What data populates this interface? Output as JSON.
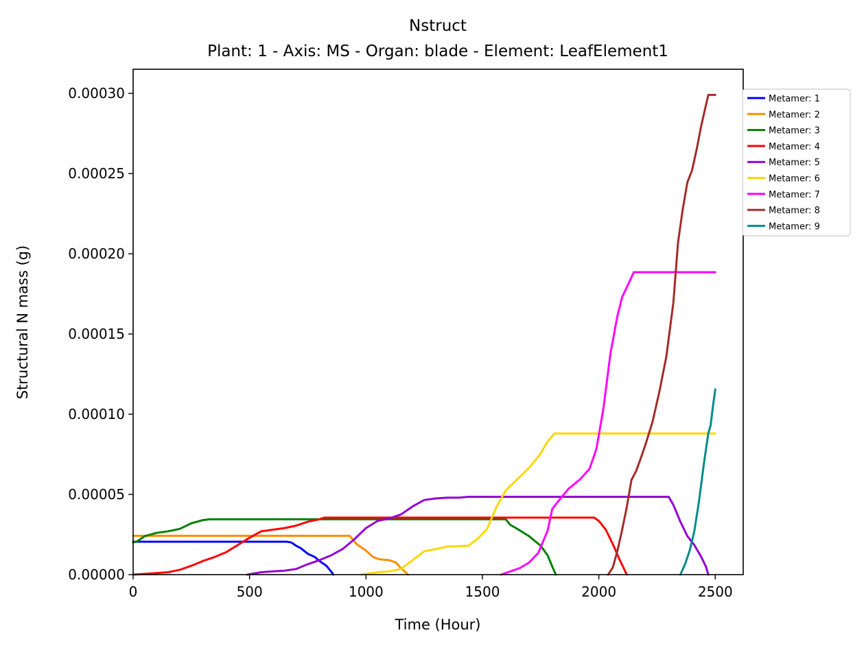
{
  "chart_data": {
    "type": "line",
    "title": "Nstruct",
    "subtitle": "Plant: 1 - Axis: MS - Organ: blade - Element: LeafElement1",
    "xlabel": "Time (Hour)",
    "ylabel": "Structural N mass (g)",
    "xlim": [
      0,
      2620
    ],
    "ylim": [
      0,
      0.000315
    ],
    "xticks": [
      0,
      500,
      1000,
      1500,
      2000,
      2500
    ],
    "xtick_labels": [
      "0",
      "500",
      "1000",
      "1500",
      "2000",
      "2500"
    ],
    "yticks": [
      0,
      5e-05,
      0.0001,
      0.00015,
      0.0002,
      0.00025,
      0.0003
    ],
    "ytick_labels": [
      "0.00000",
      "0.00005",
      "0.00010",
      "0.00015",
      "0.00020",
      "0.00025",
      "0.00030"
    ],
    "grid": false,
    "legend_position": "outside-top-right",
    "series": [
      {
        "name": "Metamer: 1",
        "color": "#0000ff",
        "x": [
          0,
          660,
          680,
          700,
          720,
          750,
          780,
          800,
          830,
          850,
          860
        ],
        "y": [
          2.05e-05,
          2.05e-05,
          2e-05,
          1.8e-05,
          1.65e-05,
          1.3e-05,
          1.1e-05,
          8.5e-06,
          5.5e-06,
          2e-06,
          0
        ]
      },
      {
        "name": "Metamer: 2",
        "color": "#ff8c00",
        "x": [
          0,
          930,
          960,
          1000,
          1030,
          1060,
          1100,
          1130,
          1150,
          1170,
          1180
        ],
        "y": [
          2.42e-05,
          2.42e-05,
          1.9e-05,
          1.5e-05,
          1.1e-05,
          9.5e-06,
          9e-06,
          7.5e-06,
          4e-06,
          1.5e-06,
          0
        ]
      },
      {
        "name": "Metamer: 3",
        "color": "#008000",
        "x": [
          0,
          20,
          50,
          100,
          150,
          200,
          250,
          300,
          330,
          1600,
          1620,
          1650,
          1700,
          1750,
          1780,
          1800,
          1815
        ],
        "y": [
          2e-05,
          2.1e-05,
          2.4e-05,
          2.6e-05,
          2.7e-05,
          2.85e-05,
          3.2e-05,
          3.4e-05,
          3.45e-05,
          3.45e-05,
          3.1e-05,
          2.85e-05,
          2.4e-05,
          1.8e-05,
          1.2e-05,
          5e-06,
          0
        ]
      },
      {
        "name": "Metamer: 4",
        "color": "#ff0000",
        "x": [
          0,
          100,
          150,
          200,
          250,
          300,
          350,
          400,
          450,
          500,
          550,
          600,
          650,
          700,
          750,
          800,
          820,
          1980,
          2000,
          2030,
          2060,
          2090,
          2120
        ],
        "y": [
          0,
          1e-06,
          1.5e-06,
          3e-06,
          5.5e-06,
          8.5e-06,
          1.1e-05,
          1.4e-05,
          1.85e-05,
          2.3e-05,
          2.7e-05,
          2.8e-05,
          2.9e-05,
          3.05e-05,
          3.3e-05,
          3.45e-05,
          3.55e-05,
          3.55e-05,
          3.35e-05,
          2.8e-05,
          1.9e-05,
          9e-06,
          0
        ]
      },
      {
        "name": "Metamer: 5",
        "color": "#9400d3",
        "x": [
          490,
          550,
          600,
          650,
          700,
          750,
          800,
          850,
          900,
          950,
          1000,
          1050,
          1100,
          1150,
          1200,
          1250,
          1300,
          1350,
          1400,
          1440,
          2300,
          2320,
          2350,
          2380,
          2410,
          2440,
          2460,
          2470
        ],
        "y": [
          0,
          1.5e-06,
          2e-06,
          2.5e-06,
          3.5e-06,
          6.5e-06,
          9e-06,
          1.2e-05,
          1.6e-05,
          2.2e-05,
          2.9e-05,
          3.35e-05,
          3.5e-05,
          3.75e-05,
          4.25e-05,
          4.65e-05,
          4.75e-05,
          4.8e-05,
          4.8e-05,
          4.85e-05,
          4.85e-05,
          4.35e-05,
          3.3e-05,
          2.4e-05,
          1.85e-05,
          1.1e-05,
          5e-06,
          0
        ]
      },
      {
        "name": "Metamer: 6",
        "color": "#ffd700",
        "x": [
          980,
          1050,
          1100,
          1150,
          1200,
          1250,
          1300,
          1350,
          1400,
          1440,
          1480,
          1520,
          1560,
          1600,
          1650,
          1700,
          1750,
          1780,
          1810,
          2500
        ],
        "y": [
          0,
          1.5e-06,
          2e-06,
          3.5e-06,
          9e-06,
          1.45e-05,
          1.6e-05,
          1.75e-05,
          1.78e-05,
          1.8e-05,
          2.25e-05,
          2.85e-05,
          4.2e-05,
          5.25e-05,
          5.95e-05,
          6.65e-05,
          7.55e-05,
          8.3e-05,
          8.8e-05,
          8.8e-05
        ]
      },
      {
        "name": "Metamer: 7",
        "color": "#ff00ff",
        "x": [
          1580,
          1620,
          1660,
          1700,
          1740,
          1780,
          1800,
          1830,
          1870,
          1920,
          1960,
          1990,
          2020,
          2050,
          2080,
          2100,
          2120,
          2150,
          2500
        ],
        "y": [
          0,
          2e-06,
          4e-06,
          7.5e-06,
          1.35e-05,
          2.75e-05,
          4.1e-05,
          4.65e-05,
          5.35e-05,
          5.95e-05,
          6.6e-05,
          7.85e-05,
          0.000104,
          0.000138,
          0.0001615,
          0.000173,
          0.000179,
          0.0001885,
          0.0001885
        ]
      },
      {
        "name": "Metamer: 8",
        "color": "#a52a2a",
        "x": [
          2040,
          2060,
          2080,
          2100,
          2120,
          2140,
          2160,
          2180,
          2200,
          2230,
          2260,
          2290,
          2320,
          2340,
          2360,
          2380,
          2400,
          2420,
          2440,
          2470,
          2500
        ],
        "y": [
          0,
          4.5e-06,
          1.5e-05,
          2.8e-05,
          4.2e-05,
          5.9e-05,
          6.45e-05,
          7.25e-05,
          8.1e-05,
          9.5e-05,
          0.000114,
          0.000136,
          0.0001695,
          0.000207,
          0.0002275,
          0.0002445,
          0.000252,
          0.000265,
          0.00028,
          0.000299,
          0.000299
        ]
      },
      {
        "name": "Metamer: 9",
        "color": "#008b8b",
        "x": [
          2350,
          2370,
          2390,
          2410,
          2430,
          2450,
          2470,
          2480,
          2490,
          2500
        ],
        "y": [
          0,
          6.5e-06,
          1.5e-05,
          2.7e-05,
          4.55e-05,
          6.8e-05,
          8.8e-05,
          9.3e-05,
          0.000105,
          0.0001155
        ]
      }
    ]
  }
}
